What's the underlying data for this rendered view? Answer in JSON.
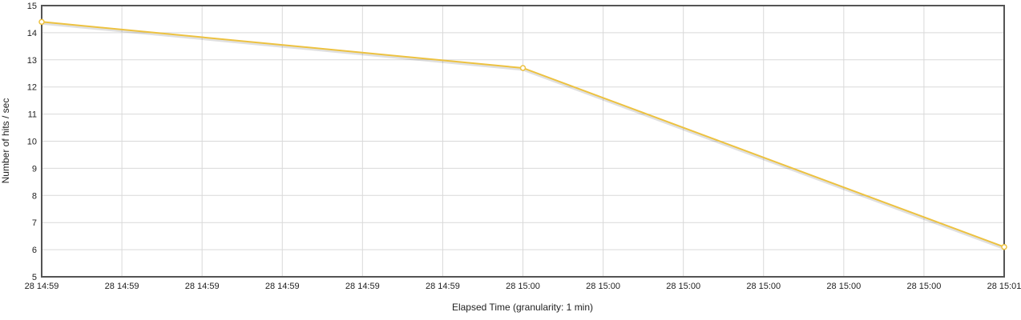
{
  "chart_data": {
    "type": "line",
    "title": "",
    "xlabel": "Elapsed Time (granularity: 1 min)",
    "ylabel": "Number of hits / sec",
    "ylim": [
      5,
      15
    ],
    "y_ticks": [
      "5",
      "6",
      "7",
      "8",
      "9",
      "10",
      "11",
      "12",
      "13",
      "14",
      "15"
    ],
    "x_tick_labels": [
      "28 14:59",
      "28 14:59",
      "28 14:59",
      "28 14:59",
      "28 14:59",
      "28 14:59",
      "28 15:00",
      "28 15:00",
      "28 15:00",
      "28 15:00",
      "28 15:00",
      "28 15:00",
      "28 15:01"
    ],
    "x_range_minutes": [
      "14:59",
      "15:01"
    ],
    "grid": true,
    "legend": "none",
    "series": [
      {
        "x": [
          "28 14:59",
          "28 15:00",
          "28 15:01"
        ],
        "values": [
          14.4,
          12.7,
          6.1
        ],
        "color": "#EDC240"
      }
    ]
  }
}
